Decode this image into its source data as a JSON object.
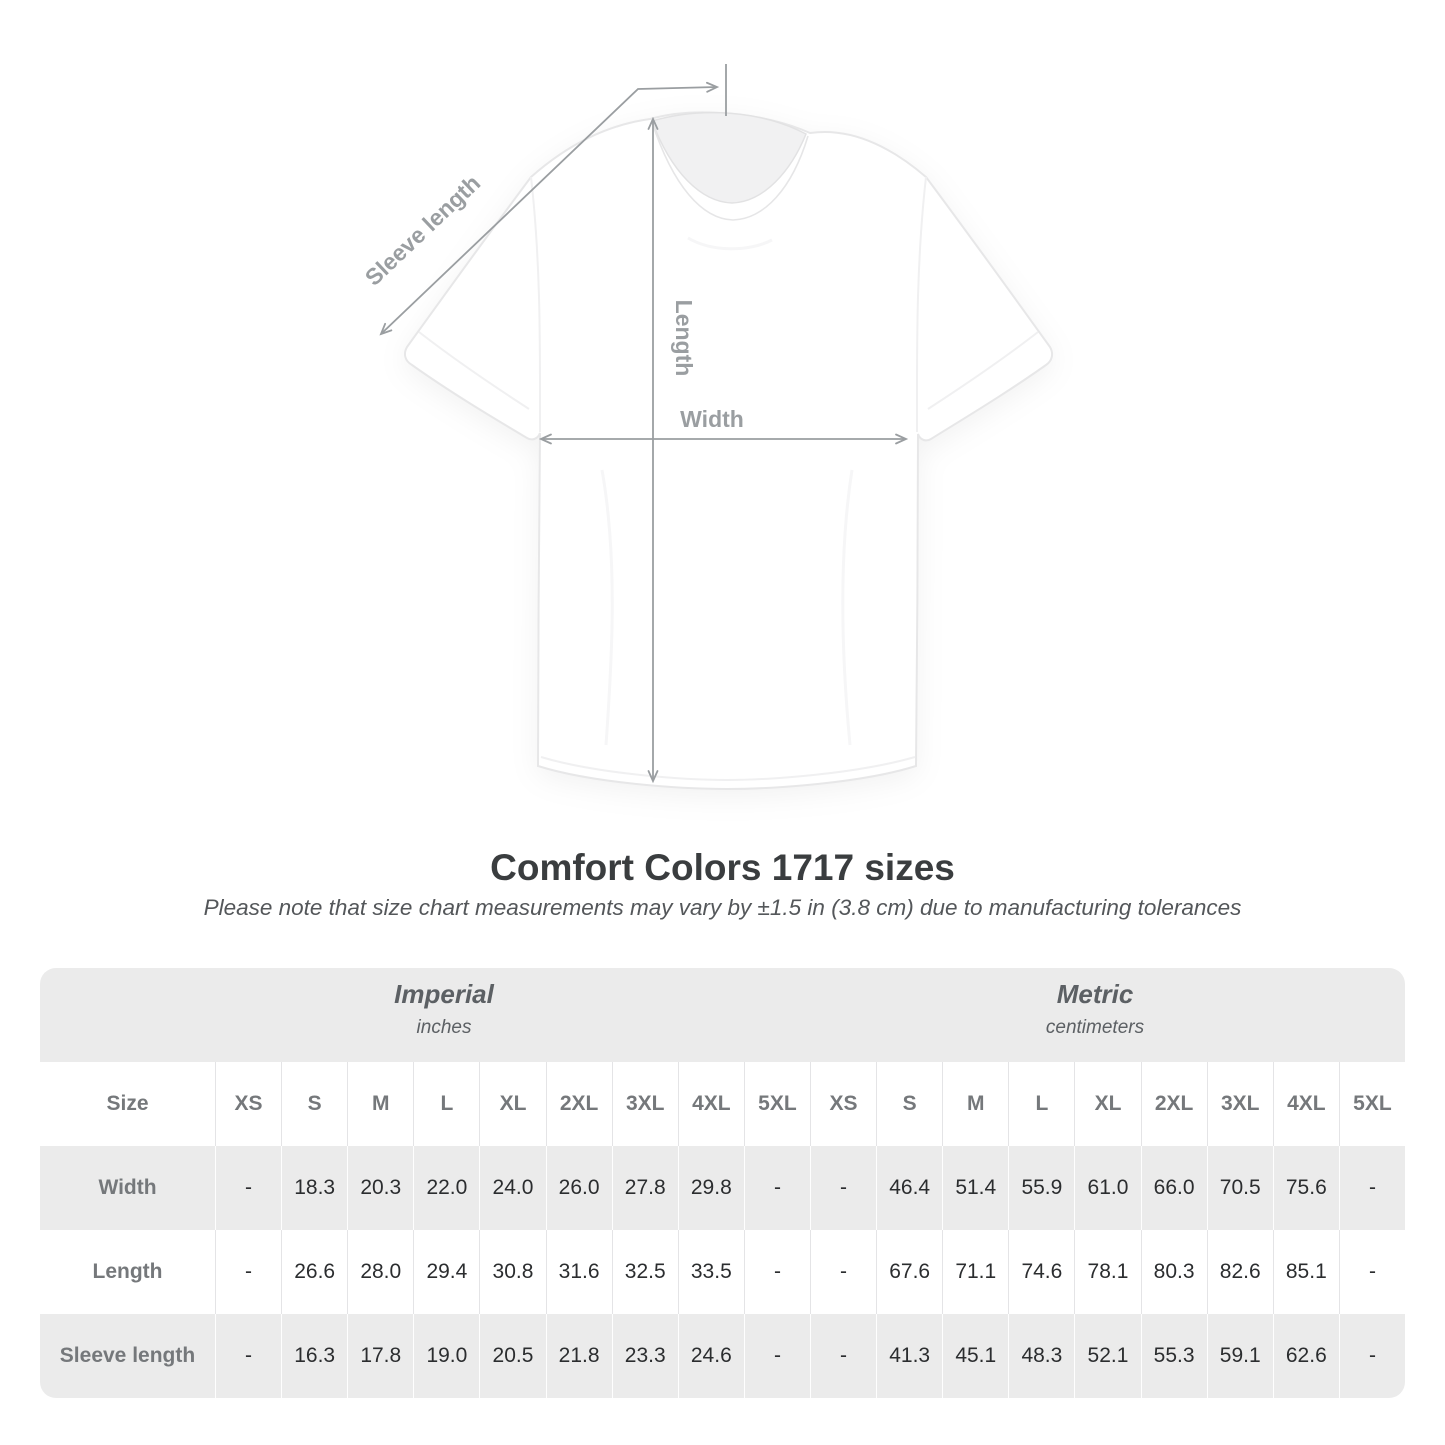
{
  "diagram": {
    "sleeve_label": "Sleeve length",
    "length_label": "Length",
    "width_label": "Width",
    "line_color": "#9a9ea1"
  },
  "heading": {
    "title": "Comfort Colors 1717 sizes",
    "subtitle": "Please note that size chart measurements may vary by ±1.5 in (3.8 cm) due to manufacturing tolerances"
  },
  "table": {
    "accent_background": "#ebebeb",
    "unit_groups": [
      {
        "name": "Imperial",
        "unit": "inches"
      },
      {
        "name": "Metric",
        "unit": "centimeters"
      }
    ],
    "size_header": "Size",
    "columns": [
      "XS",
      "S",
      "M",
      "L",
      "XL",
      "2XL",
      "3XL",
      "4XL",
      "5XL",
      "XS",
      "S",
      "M",
      "L",
      "XL",
      "2XL",
      "3XL",
      "4XL",
      "5XL"
    ],
    "rows": [
      {
        "label": "Width",
        "values": [
          "-",
          "18.3",
          "20.3",
          "22.0",
          "24.0",
          "26.0",
          "27.8",
          "29.8",
          "-",
          "-",
          "46.4",
          "51.4",
          "55.9",
          "61.0",
          "66.0",
          "70.5",
          "75.6",
          "-"
        ]
      },
      {
        "label": "Length",
        "values": [
          "-",
          "26.6",
          "28.0",
          "29.4",
          "30.8",
          "31.6",
          "32.5",
          "33.5",
          "-",
          "-",
          "67.6",
          "71.1",
          "74.6",
          "78.1",
          "80.3",
          "82.6",
          "85.1",
          "-"
        ]
      },
      {
        "label": "Sleeve length",
        "values": [
          "-",
          "16.3",
          "17.8",
          "19.0",
          "20.5",
          "21.8",
          "23.3",
          "24.6",
          "-",
          "-",
          "41.3",
          "45.1",
          "48.3",
          "52.1",
          "55.3",
          "59.1",
          "62.6",
          "-"
        ]
      }
    ]
  }
}
